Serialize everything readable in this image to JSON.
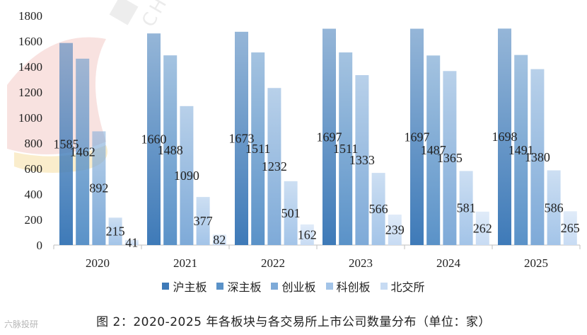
{
  "chart_data": {
    "type": "bar",
    "categories": [
      "2020",
      "2021",
      "2022",
      "2023",
      "2024",
      "2025"
    ],
    "series": [
      {
        "name": "沪主板",
        "values": [
          1585,
          1660,
          1673,
          1697,
          1697,
          1698
        ],
        "color": "#3e7ab8"
      },
      {
        "name": "深主板",
        "values": [
          1462,
          1488,
          1511,
          1511,
          1487,
          1491
        ],
        "color": "#5a92c8"
      },
      {
        "name": "创业板",
        "values": [
          892,
          1090,
          1232,
          1333,
          1365,
          1380
        ],
        "color": "#7eaad8"
      },
      {
        "name": "科创板",
        "values": [
          215,
          377,
          501,
          566,
          581,
          586
        ],
        "color": "#a3c4e8"
      },
      {
        "name": "北交所",
        "values": [
          41,
          82,
          162,
          239,
          262,
          265
        ],
        "color": "#c7dbf3"
      }
    ],
    "yticks": [
      0,
      200,
      400,
      600,
      800,
      1000,
      1200,
      1400,
      1600,
      1800
    ],
    "ylim": [
      0,
      1800
    ],
    "grid": false,
    "legend": "bottom",
    "title": "图 2：2020-2025 年各板块与各交易所上市公司数量分布（单位：家）"
  },
  "watermark": {
    "text": "CHINA",
    "brand": "六脉投研"
  }
}
